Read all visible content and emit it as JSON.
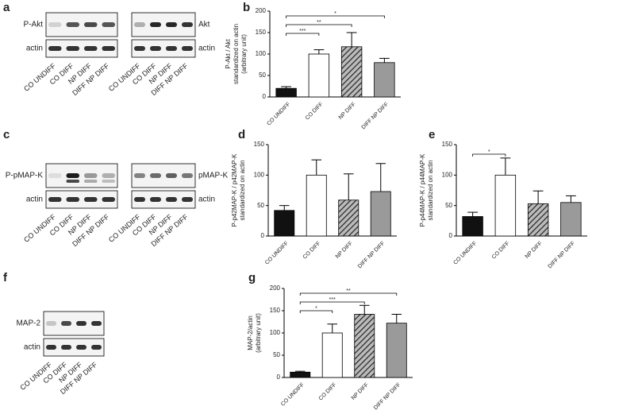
{
  "panel_labels": [
    "a",
    "c",
    "f"
  ],
  "blots": [
    {
      "rows": [
        "P-Akt",
        "actin"
      ],
      "lanes": [
        "CO UNDIFF",
        "CO DIFF",
        "NP DIFF",
        "DIFF NP DIFF"
      ]
    },
    {
      "rows": [
        "Akt",
        "actin"
      ],
      "lanes": [
        "CO UNDIFF",
        "CO DIFF",
        "NP DIFF",
        "DIFF NP DIFF"
      ]
    },
    {
      "rows": [
        "P-pMAP-K",
        "actin"
      ],
      "lanes": [
        "CO UNDIFF",
        "CO DIFF",
        "NP DIFF",
        "DIFF NP DIFF"
      ]
    },
    {
      "rows": [
        "pMAP-K",
        "actin"
      ],
      "lanes": [
        "CO UNDIFF",
        "CO DIFF",
        "NP DIFF",
        "DIFF NP DIFF"
      ]
    },
    {
      "rows": [
        "MAP-2",
        "actin"
      ],
      "lanes": [
        "CO UNDIFF",
        "CO DIFF",
        "NP DIFF",
        "DIFF NP DIFF"
      ]
    }
  ],
  "chart_data": [
    {
      "type": "bar",
      "label": "b",
      "ylabel": [
        "P-Akt / Akt",
        "standardized on actin",
        "(arbitrary unit)"
      ],
      "categories": [
        "CO UNDIFF",
        "CO DIFF",
        "NP DIFF",
        "DIFF NP DIFF"
      ],
      "values": [
        20,
        100,
        117,
        80
      ],
      "errors": [
        4,
        10,
        33,
        10
      ],
      "colors": [
        "#111111",
        "#ffffff",
        "#555555",
        "#9a9a9a"
      ],
      "hatched": [
        false,
        false,
        true,
        false
      ],
      "ylim": [
        0,
        200
      ],
      "yticks": [
        0,
        50,
        100,
        150,
        200
      ],
      "annotations": [
        {
          "text": "***",
          "between": [
            0,
            1
          ]
        },
        {
          "text": "**",
          "between": [
            0,
            2
          ]
        },
        {
          "text": "*",
          "between": [
            0,
            3
          ]
        }
      ]
    },
    {
      "type": "bar",
      "label": "d",
      "ylabel": [
        "P-p42MAP-K / p42MAP-K",
        "standardized on actin"
      ],
      "categories": [
        "CO UNDIFF",
        "CO DIFF",
        "NP DIFF",
        "DIFF NP DIFF"
      ],
      "values": [
        42,
        100,
        59,
        73
      ],
      "errors": [
        8,
        25,
        43,
        46
      ],
      "colors": [
        "#111111",
        "#ffffff",
        "#555555",
        "#9a9a9a"
      ],
      "hatched": [
        false,
        false,
        true,
        false
      ],
      "ylim": [
        0,
        150
      ],
      "yticks": [
        0,
        50,
        100,
        150
      ],
      "annotations": []
    },
    {
      "type": "bar",
      "label": "e",
      "ylabel": [
        "P-p44MAP-K / p44MAP-K",
        "standardized on actin"
      ],
      "categories": [
        "CO UNDIFF",
        "CO DIFF",
        "NP DIFF",
        "DIFF NP DIFF"
      ],
      "values": [
        32,
        100,
        53,
        55
      ],
      "errors": [
        7,
        28,
        21,
        11
      ],
      "colors": [
        "#111111",
        "#ffffff",
        "#555555",
        "#9a9a9a"
      ],
      "hatched": [
        false,
        false,
        true,
        false
      ],
      "ylim": [
        0,
        150
      ],
      "yticks": [
        0,
        50,
        100,
        150
      ],
      "annotations": [
        {
          "text": "*",
          "between": [
            0,
            1
          ]
        }
      ]
    },
    {
      "type": "bar",
      "label": "g",
      "ylabel": [
        "MAP-2/actin",
        "(arbitrary unit)"
      ],
      "categories": [
        "CO UNDIFF",
        "CO DIFF",
        "NP DIFF",
        "DIFF NP DIFF"
      ],
      "values": [
        12,
        100,
        142,
        122
      ],
      "errors": [
        2,
        20,
        20,
        20
      ],
      "colors": [
        "#111111",
        "#ffffff",
        "#555555",
        "#9a9a9a"
      ],
      "hatched": [
        false,
        false,
        true,
        false
      ],
      "ylim": [
        0,
        200
      ],
      "yticks": [
        0,
        50,
        100,
        150,
        200
      ],
      "annotations": [
        {
          "text": "*",
          "between": [
            0,
            1
          ]
        },
        {
          "text": "***",
          "between": [
            0,
            2
          ]
        },
        {
          "text": "**",
          "between": [
            0,
            3
          ]
        }
      ]
    }
  ]
}
